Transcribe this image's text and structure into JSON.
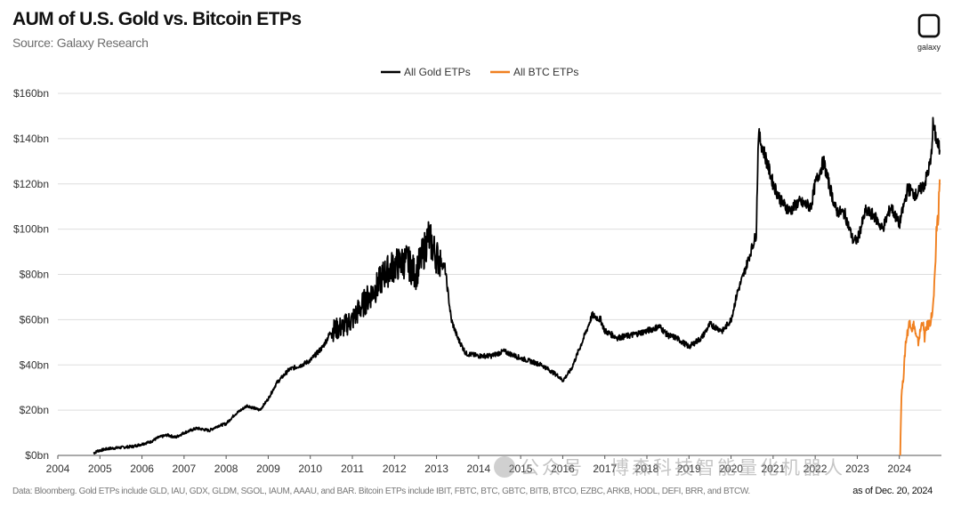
{
  "header": {
    "title": "AUM of U.S. Gold vs. Bitcoin ETPs",
    "subtitle": "Source: Galaxy Research",
    "logo_text": "galaxy",
    "logo_icon": "galaxy-logo-icon"
  },
  "footer": {
    "note": "Data: Bloomberg. Gold ETPs include GLD, IAU, GDX, GLDM, SGOL, IAUM, AAAU, and BAR. Bitcoin ETPs include IBIT, FBTC, BTC, GBTC, BITB, BTCO, EZBC, ARKB, HODL, DEFI, BRR, and BTCW.",
    "as_of": "as of Dec. 20, 2024",
    "watermark": "公众号 · 博森科技智能量化机器人"
  },
  "chart_data": {
    "type": "line",
    "title": "AUM of U.S. Gold vs. Bitcoin ETPs",
    "xlabel": "",
    "ylabel": "",
    "xlim": [
      2004,
      2025
    ],
    "ylim": [
      0,
      160
    ],
    "x_ticks": [
      "2004",
      "2005",
      "2006",
      "2007",
      "2008",
      "2009",
      "2010",
      "2011",
      "2012",
      "2013",
      "2014",
      "2015",
      "2016",
      "2017",
      "2018",
      "2019",
      "2020",
      "2021",
      "2022",
      "2023",
      "2024"
    ],
    "y_ticks": [
      "$0bn",
      "$20bn",
      "$40bn",
      "$60bn",
      "$80bn",
      "$100bn",
      "$120bn",
      "$140bn",
      "$160bn"
    ],
    "grid": "horizontal",
    "legend_position": "top-center",
    "series": [
      {
        "name": "All Gold ETPs",
        "color": "#000000",
        "x": [
          2004.85,
          2004.95,
          2005.2,
          2005.5,
          2005.8,
          2006.0,
          2006.2,
          2006.4,
          2006.6,
          2006.8,
          2007.0,
          2007.3,
          2007.6,
          2007.8,
          2008.0,
          2008.2,
          2008.5,
          2008.8,
          2009.0,
          2009.2,
          2009.5,
          2009.8,
          2010.0,
          2010.3,
          2010.5,
          2010.8,
          2011.0,
          2011.3,
          2011.6,
          2011.75,
          2012.0,
          2012.3,
          2012.5,
          2012.7,
          2012.8,
          2013.0,
          2013.2,
          2013.35,
          2013.5,
          2013.7,
          2014.0,
          2014.3,
          2014.6,
          2015.0,
          2015.5,
          2015.9,
          2016.0,
          2016.2,
          2016.5,
          2016.7,
          2016.9,
          2017.0,
          2017.3,
          2017.6,
          2018.0,
          2018.3,
          2018.5,
          2018.7,
          2019.0,
          2019.3,
          2019.5,
          2019.8,
          2020.0,
          2020.15,
          2020.3,
          2020.6,
          2020.65,
          2020.8,
          2021.0,
          2021.2,
          2021.4,
          2021.6,
          2021.9,
          2022.0,
          2022.2,
          2022.3,
          2022.5,
          2022.7,
          2022.9,
          2023.0,
          2023.2,
          2023.4,
          2023.6,
          2023.8,
          2024.0,
          2024.2,
          2024.4,
          2024.6,
          2024.75,
          2024.8,
          2024.9,
          2024.96
        ],
        "values": [
          1,
          2,
          3,
          3.5,
          4,
          5,
          6,
          8,
          9,
          8,
          10,
          12,
          11,
          13,
          14,
          18,
          22,
          20,
          25,
          32,
          38,
          40,
          42,
          48,
          55,
          57,
          60,
          68,
          75,
          80,
          84,
          86,
          80,
          90,
          97,
          88,
          83,
          60,
          52,
          45,
          44,
          44,
          46,
          43,
          40,
          35,
          33,
          38,
          52,
          62,
          60,
          55,
          52,
          53,
          55,
          57,
          53,
          52,
          48,
          52,
          58,
          55,
          60,
          72,
          80,
          98,
          142,
          133,
          120,
          112,
          108,
          112,
          110,
          120,
          130,
          122,
          108,
          107,
          95,
          95,
          108,
          106,
          100,
          110,
          102,
          118,
          115,
          120,
          130,
          146,
          138,
          135
        ]
      },
      {
        "name": "All BTC ETPs",
        "color": "#f08020",
        "x": [
          2024.02,
          2024.05,
          2024.1,
          2024.15,
          2024.2,
          2024.25,
          2024.3,
          2024.35,
          2024.4,
          2024.45,
          2024.5,
          2024.55,
          2024.6,
          2024.65,
          2024.7,
          2024.75,
          2024.8,
          2024.85,
          2024.88,
          2024.92,
          2024.96
        ],
        "values": [
          0,
          27,
          35,
          50,
          55,
          60,
          56,
          58,
          52,
          50,
          55,
          60,
          52,
          57,
          58,
          60,
          65,
          80,
          100,
          105,
          122
        ]
      }
    ]
  }
}
